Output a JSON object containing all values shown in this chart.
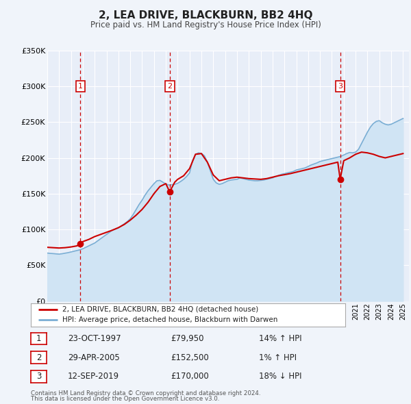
{
  "title": "2, LEA DRIVE, BLACKBURN, BB2 4HQ",
  "subtitle": "Price paid vs. HM Land Registry's House Price Index (HPI)",
  "background_color": "#f0f4fa",
  "plot_bg_color": "#e8eef8",
  "grid_color": "#ffffff",
  "xlim_start": 1995.0,
  "xlim_end": 2025.5,
  "ylim_min": 0,
  "ylim_max": 350000,
  "yticks": [
    0,
    50000,
    100000,
    150000,
    200000,
    250000,
    300000,
    350000
  ],
  "ytick_labels": [
    "£0",
    "£50K",
    "£100K",
    "£150K",
    "£200K",
    "£250K",
    "£300K",
    "£350K"
  ],
  "xticks": [
    1995,
    1996,
    1997,
    1998,
    1999,
    2000,
    2001,
    2002,
    2003,
    2004,
    2005,
    2006,
    2007,
    2008,
    2009,
    2010,
    2011,
    2012,
    2013,
    2014,
    2015,
    2016,
    2017,
    2018,
    2019,
    2020,
    2021,
    2022,
    2023,
    2024,
    2025
  ],
  "sale_color": "#cc0000",
  "hpi_color": "#7aaed4",
  "hpi_fill_color": "#d0e4f4",
  "sale_dot_color": "#cc0000",
  "vline_color": "#cc0000",
  "legend_label_sale": "2, LEA DRIVE, BLACKBURN, BB2 4HQ (detached house)",
  "legend_label_hpi": "HPI: Average price, detached house, Blackburn with Darwen",
  "transaction_label1": "1",
  "transaction_date1": "23-OCT-1997",
  "transaction_price1": "£79,950",
  "transaction_hpi1": "14% ↑ HPI",
  "transaction_x1": 1997.8,
  "transaction_y1": 79950,
  "transaction_label2": "2",
  "transaction_date2": "29-APR-2005",
  "transaction_price2": "£152,500",
  "transaction_hpi2": "1% ↑ HPI",
  "transaction_x2": 2005.32,
  "transaction_y2": 152500,
  "transaction_label3": "3",
  "transaction_date3": "12-SEP-2019",
  "transaction_price3": "£170,000",
  "transaction_hpi3": "18% ↓ HPI",
  "transaction_x3": 2019.7,
  "transaction_y3": 170000,
  "footer_line1": "Contains HM Land Registry data © Crown copyright and database right 2024.",
  "footer_line2": "This data is licensed under the Open Government Licence v3.0.",
  "hpi_data_x": [
    1995.0,
    1995.25,
    1995.5,
    1995.75,
    1996.0,
    1996.25,
    1996.5,
    1996.75,
    1997.0,
    1997.25,
    1997.5,
    1997.75,
    1998.0,
    1998.25,
    1998.5,
    1998.75,
    1999.0,
    1999.25,
    1999.5,
    1999.75,
    2000.0,
    2000.25,
    2000.5,
    2000.75,
    2001.0,
    2001.25,
    2001.5,
    2001.75,
    2002.0,
    2002.25,
    2002.5,
    2002.75,
    2003.0,
    2003.25,
    2003.5,
    2003.75,
    2004.0,
    2004.25,
    2004.5,
    2004.75,
    2005.0,
    2005.25,
    2005.5,
    2005.75,
    2006.0,
    2006.25,
    2006.5,
    2006.75,
    2007.0,
    2007.25,
    2007.5,
    2007.75,
    2008.0,
    2008.25,
    2008.5,
    2008.75,
    2009.0,
    2009.25,
    2009.5,
    2009.75,
    2010.0,
    2010.25,
    2010.5,
    2010.75,
    2011.0,
    2011.25,
    2011.5,
    2011.75,
    2012.0,
    2012.25,
    2012.5,
    2012.75,
    2013.0,
    2013.25,
    2013.5,
    2013.75,
    2014.0,
    2014.25,
    2014.5,
    2014.75,
    2015.0,
    2015.25,
    2015.5,
    2015.75,
    2016.0,
    2016.25,
    2016.5,
    2016.75,
    2017.0,
    2017.25,
    2017.5,
    2017.75,
    2018.0,
    2018.25,
    2018.5,
    2018.75,
    2019.0,
    2019.25,
    2019.5,
    2019.75,
    2020.0,
    2020.25,
    2020.5,
    2020.75,
    2021.0,
    2021.25,
    2021.5,
    2021.75,
    2022.0,
    2022.25,
    2022.5,
    2022.75,
    2023.0,
    2023.25,
    2023.5,
    2023.75,
    2024.0,
    2024.25,
    2024.5,
    2024.75,
    2025.0
  ],
  "hpi_data_y": [
    67000,
    66500,
    66200,
    65800,
    65500,
    66000,
    66800,
    67500,
    68500,
    69500,
    70500,
    71500,
    73000,
    75000,
    77000,
    79000,
    81000,
    84000,
    87000,
    90000,
    93000,
    96000,
    99000,
    100500,
    102000,
    105000,
    108000,
    111000,
    115000,
    121000,
    128000,
    135000,
    141000,
    148000,
    154000,
    159000,
    164000,
    168000,
    168500,
    166000,
    163500,
    162000,
    162500,
    163000,
    164500,
    167000,
    170000,
    174000,
    179000,
    196000,
    205000,
    207000,
    206000,
    203000,
    194000,
    182000,
    170000,
    165000,
    163000,
    164000,
    166000,
    168000,
    169000,
    169500,
    170000,
    172000,
    171000,
    170000,
    169000,
    168500,
    168000,
    168000,
    168500,
    169000,
    170000,
    171000,
    172000,
    174000,
    175500,
    177000,
    178000,
    179000,
    180000,
    181000,
    183000,
    184000,
    185000,
    186000,
    188000,
    190000,
    191500,
    193000,
    195000,
    196000,
    197000,
    198000,
    199000,
    200000,
    201000,
    202000,
    204000,
    206000,
    207500,
    207000,
    208000,
    212000,
    220000,
    228000,
    236000,
    243000,
    248000,
    251000,
    252000,
    249000,
    247000,
    246000,
    247000,
    249000,
    251000,
    253000,
    255000
  ],
  "sale_data_x": [
    1995.0,
    1995.5,
    1996.0,
    1996.5,
    1997.0,
    1997.5,
    1997.8,
    1998.0,
    1998.5,
    1999.0,
    1999.5,
    2000.0,
    2000.5,
    2001.0,
    2001.5,
    2002.0,
    2002.5,
    2003.0,
    2003.5,
    2004.0,
    2004.5,
    2005.0,
    2005.32,
    2005.75,
    2006.0,
    2006.5,
    2007.0,
    2007.5,
    2008.0,
    2008.5,
    2009.0,
    2009.5,
    2010.0,
    2010.5,
    2011.0,
    2011.5,
    2012.0,
    2012.5,
    2013.0,
    2013.5,
    2014.0,
    2014.5,
    2015.0,
    2015.5,
    2016.0,
    2016.5,
    2017.0,
    2017.5,
    2018.0,
    2018.5,
    2019.0,
    2019.5,
    2019.7,
    2020.0,
    2020.5,
    2021.0,
    2021.5,
    2022.0,
    2022.5,
    2023.0,
    2023.5,
    2024.0,
    2024.5,
    2025.0
  ],
  "sale_data_y": [
    75000,
    74500,
    74000,
    74500,
    75500,
    77000,
    79950,
    83000,
    86000,
    90000,
    93000,
    96000,
    99000,
    102500,
    107000,
    113000,
    120000,
    128000,
    138000,
    150000,
    160000,
    164000,
    152500,
    166000,
    170000,
    175000,
    185000,
    205000,
    206000,
    194000,
    176000,
    168000,
    170000,
    172000,
    173000,
    172000,
    171000,
    170500,
    170000,
    171000,
    173000,
    175000,
    176500,
    178000,
    180000,
    182000,
    184000,
    186000,
    188000,
    190000,
    192000,
    194000,
    170000,
    196000,
    200000,
    205000,
    208000,
    207000,
    205000,
    202000,
    200000,
    202000,
    204000,
    206000
  ]
}
